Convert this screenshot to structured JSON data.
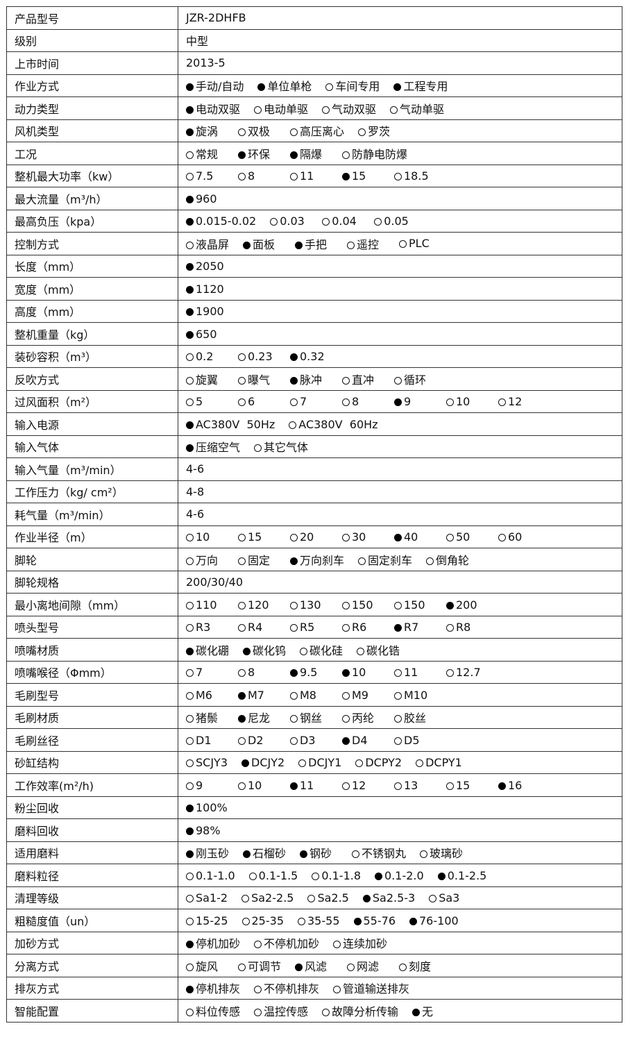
{
  "rows": [
    {
      "label": "产品型号",
      "value": "JZR-2DHFB"
    },
    {
      "label": "级别",
      "value": "中型"
    },
    {
      "label": "上市时间",
      "value": "2013-5"
    },
    {
      "label": "作业方式",
      "options": [
        {
          "t": "手动/自动",
          "s": true
        },
        {
          "t": "单位单枪",
          "s": true
        },
        {
          "t": "车间专用",
          "s": false
        },
        {
          "t": "工程专用",
          "s": true
        }
      ]
    },
    {
      "label": "动力类型",
      "options": [
        {
          "t": "电动双驱",
          "s": true
        },
        {
          "t": "电动单驱",
          "s": false
        },
        {
          "t": "气动双驱",
          "s": false
        },
        {
          "t": "气动单驱",
          "s": false
        }
      ]
    },
    {
      "label": "风机类型",
      "options": [
        {
          "t": "旋涡",
          "s": true
        },
        {
          "t": "双极",
          "s": false
        },
        {
          "t": "高压离心",
          "s": false
        },
        {
          "t": "罗茨",
          "s": false
        }
      ]
    },
    {
      "label": "工况",
      "options": [
        {
          "t": "常规",
          "s": false
        },
        {
          "t": "环保",
          "s": true
        },
        {
          "t": "隔爆",
          "s": true
        },
        {
          "t": "防静电防爆",
          "s": false
        }
      ]
    },
    {
      "label": "整机最大功率（kw）",
      "options": [
        {
          "t": "7.5",
          "s": false
        },
        {
          "t": "8",
          "s": false
        },
        {
          "t": "11",
          "s": false
        },
        {
          "t": "15",
          "s": true
        },
        {
          "t": "18.5",
          "s": false
        }
      ]
    },
    {
      "label": "最大流量（m³/h）",
      "options": [
        {
          "t": "960",
          "s": true
        }
      ]
    },
    {
      "label": "最高负压（kpa）",
      "options": [
        {
          "t": "0.015-0.02",
          "s": true
        },
        {
          "t": "0.03",
          "s": false
        },
        {
          "t": "0.04",
          "s": false
        },
        {
          "t": "0.05",
          "s": false
        }
      ]
    },
    {
      "label": "控制方式",
      "options": [
        {
          "t": "液晶屏",
          "s": false
        },
        {
          "t": "面板",
          "s": true
        },
        {
          "t": "手把",
          "s": true
        },
        {
          "t": "遥控",
          "s": false
        },
        {
          "t": "PLC",
          "s": false
        }
      ]
    },
    {
      "label": "长度（mm）",
      "options": [
        {
          "t": "2050",
          "s": true
        }
      ]
    },
    {
      "label": "宽度（mm）",
      "options": [
        {
          "t": "1120",
          "s": true
        }
      ]
    },
    {
      "label": "高度（mm）",
      "options": [
        {
          "t": "1900",
          "s": true
        }
      ]
    },
    {
      "label": "整机重量（kg）",
      "options": [
        {
          "t": "650",
          "s": true
        }
      ]
    },
    {
      "label": "装砂容积（m³）",
      "options": [
        {
          "t": "0.2",
          "s": false
        },
        {
          "t": "0.23",
          "s": false
        },
        {
          "t": "0.32",
          "s": true
        }
      ]
    },
    {
      "label": "反吹方式",
      "options": [
        {
          "t": "旋翼",
          "s": false
        },
        {
          "t": "曝气",
          "s": false
        },
        {
          "t": "脉冲",
          "s": true
        },
        {
          "t": "直冲",
          "s": false
        },
        {
          "t": "循环",
          "s": false
        }
      ]
    },
    {
      "label": "过风面积（m²）",
      "options": [
        {
          "t": "5",
          "s": false
        },
        {
          "t": "6",
          "s": false
        },
        {
          "t": "7",
          "s": false
        },
        {
          "t": "8",
          "s": false
        },
        {
          "t": "9",
          "s": true
        },
        {
          "t": "10",
          "s": false
        },
        {
          "t": "12",
          "s": false
        }
      ]
    },
    {
      "label": "输入电源",
      "options": [
        {
          "t": "AC380V  50Hz",
          "s": true
        },
        {
          "t": "AC380V  60Hz",
          "s": false
        }
      ]
    },
    {
      "label": "输入气体",
      "options": [
        {
          "t": "压缩空气",
          "s": true
        },
        {
          "t": "其它气体",
          "s": false
        }
      ]
    },
    {
      "label": "输入气量（m³/min）",
      "value": "4-6"
    },
    {
      "label": "工作压力（kg/ cm²）",
      "value": "4-8"
    },
    {
      "label": "耗气量（m³/min）",
      "value": "4-6"
    },
    {
      "label": "作业半径（m）",
      "options": [
        {
          "t": "10",
          "s": false
        },
        {
          "t": "15",
          "s": false
        },
        {
          "t": "20",
          "s": false
        },
        {
          "t": "30",
          "s": false
        },
        {
          "t": "40",
          "s": true
        },
        {
          "t": "50",
          "s": false
        },
        {
          "t": "60",
          "s": false
        }
      ]
    },
    {
      "label": "脚轮",
      "options": [
        {
          "t": "万向",
          "s": false
        },
        {
          "t": "固定",
          "s": false
        },
        {
          "t": "万向刹车",
          "s": true
        },
        {
          "t": "固定刹车",
          "s": false
        },
        {
          "t": "倒角轮",
          "s": false
        }
      ]
    },
    {
      "label": "脚轮规格",
      "value": "200/30/40"
    },
    {
      "label": "最小离地间隙（mm）",
      "options": [
        {
          "t": "110",
          "s": false
        },
        {
          "t": "120",
          "s": false
        },
        {
          "t": "130",
          "s": false
        },
        {
          "t": "150",
          "s": false
        },
        {
          "t": "150",
          "s": false
        },
        {
          "t": "200",
          "s": true
        }
      ]
    },
    {
      "label": "喷头型号",
      "options": [
        {
          "t": "R3",
          "s": false
        },
        {
          "t": "R4",
          "s": false
        },
        {
          "t": "R5",
          "s": false
        },
        {
          "t": "R6",
          "s": false
        },
        {
          "t": "R7",
          "s": true
        },
        {
          "t": "R8",
          "s": false
        }
      ]
    },
    {
      "label": "喷嘴材质",
      "options": [
        {
          "t": "碳化硼",
          "s": true
        },
        {
          "t": "碳化钨",
          "s": true
        },
        {
          "t": "碳化硅",
          "s": false
        },
        {
          "t": "碳化锆",
          "s": false
        }
      ]
    },
    {
      "label": "喷嘴喉径（Φmm）",
      "options": [
        {
          "t": "7",
          "s": false
        },
        {
          "t": "8",
          "s": false
        },
        {
          "t": "9.5",
          "s": true
        },
        {
          "t": "10",
          "s": true
        },
        {
          "t": "11",
          "s": false
        },
        {
          "t": "12.7",
          "s": false
        }
      ]
    },
    {
      "label": "毛刷型号",
      "options": [
        {
          "t": "M6",
          "s": false
        },
        {
          "t": "M7",
          "s": true
        },
        {
          "t": "M8",
          "s": false
        },
        {
          "t": "M9",
          "s": false
        },
        {
          "t": "M10",
          "s": false
        }
      ]
    },
    {
      "label": "毛刷材质",
      "options": [
        {
          "t": "猪鬃",
          "s": false
        },
        {
          "t": "尼龙",
          "s": true
        },
        {
          "t": "钢丝",
          "s": false
        },
        {
          "t": "丙纶",
          "s": false
        },
        {
          "t": "胶丝",
          "s": false
        }
      ]
    },
    {
      "label": "毛刷丝径",
      "options": [
        {
          "t": "D1",
          "s": false
        },
        {
          "t": "D2",
          "s": false
        },
        {
          "t": "D3",
          "s": false
        },
        {
          "t": "D4",
          "s": true
        },
        {
          "t": "D5",
          "s": false
        }
      ]
    },
    {
      "label": "砂缸结构",
      "options": [
        {
          "t": "SCJY3",
          "s": false
        },
        {
          "t": "DCJY2",
          "s": true
        },
        {
          "t": "DCJY1",
          "s": false
        },
        {
          "t": "DCPY2",
          "s": false
        },
        {
          "t": "DCPY1",
          "s": false
        }
      ]
    },
    {
      "label": "工作效率(m²/h)",
      "options": [
        {
          "t": "9",
          "s": false
        },
        {
          "t": "10",
          "s": false
        },
        {
          "t": "11",
          "s": true
        },
        {
          "t": "12",
          "s": false
        },
        {
          "t": "13",
          "s": false
        },
        {
          "t": "15",
          "s": false
        },
        {
          "t": "16",
          "s": true
        }
      ]
    },
    {
      "label": "粉尘回收",
      "options": [
        {
          "t": "100%",
          "s": true
        }
      ]
    },
    {
      "label": "磨料回收",
      "options": [
        {
          "t": "98%",
          "s": true
        }
      ]
    },
    {
      "label": "适用磨料",
      "options": [
        {
          "t": "刚玉砂",
          "s": true
        },
        {
          "t": "石榴砂",
          "s": true
        },
        {
          "t": "钢砂",
          "s": true
        },
        {
          "t": "不锈钢丸",
          "s": false
        },
        {
          "t": "玻璃砂",
          "s": false
        }
      ]
    },
    {
      "label": "磨料粒径",
      "options": [
        {
          "t": "0.1-1.0",
          "s": false
        },
        {
          "t": "0.1-1.5",
          "s": false
        },
        {
          "t": "0.1-1.8",
          "s": false
        },
        {
          "t": "0.1-2.0",
          "s": true
        },
        {
          "t": "0.1-2.5",
          "s": true
        }
      ]
    },
    {
      "label": "清理等级",
      "options": [
        {
          "t": "Sa1-2",
          "s": false
        },
        {
          "t": "Sa2-2.5",
          "s": false
        },
        {
          "t": "Sa2.5",
          "s": false
        },
        {
          "t": "Sa2.5-3",
          "s": true
        },
        {
          "t": "Sa3",
          "s": false
        }
      ]
    },
    {
      "label": "粗糙度值（un）",
      "options": [
        {
          "t": "15-25",
          "s": false
        },
        {
          "t": "25-35",
          "s": false
        },
        {
          "t": "35-55",
          "s": false
        },
        {
          "t": "55-76",
          "s": true
        },
        {
          "t": "76-100",
          "s": true
        }
      ]
    },
    {
      "label": "加砂方式",
      "options": [
        {
          "t": "停机加砂",
          "s": true
        },
        {
          "t": "不停机加砂",
          "s": false
        },
        {
          "t": "连续加砂",
          "s": false
        }
      ]
    },
    {
      "label": "分离方式",
      "options": [
        {
          "t": "旋风",
          "s": false
        },
        {
          "t": "可调节",
          "s": false
        },
        {
          "t": "风滤",
          "s": true
        },
        {
          "t": "网滤",
          "s": false
        },
        {
          "t": "刻度",
          "s": false
        }
      ]
    },
    {
      "label": "排灰方式",
      "options": [
        {
          "t": "停机排灰",
          "s": true
        },
        {
          "t": "不停机排灰",
          "s": false
        },
        {
          "t": "管道输送排灰",
          "s": false
        }
      ]
    },
    {
      "label": "智能配置",
      "options": [
        {
          "t": "料位传感",
          "s": false
        },
        {
          "t": "温控传感",
          "s": false
        },
        {
          "t": "故障分析传输",
          "s": false
        },
        {
          "t": "无",
          "s": true
        }
      ]
    }
  ]
}
